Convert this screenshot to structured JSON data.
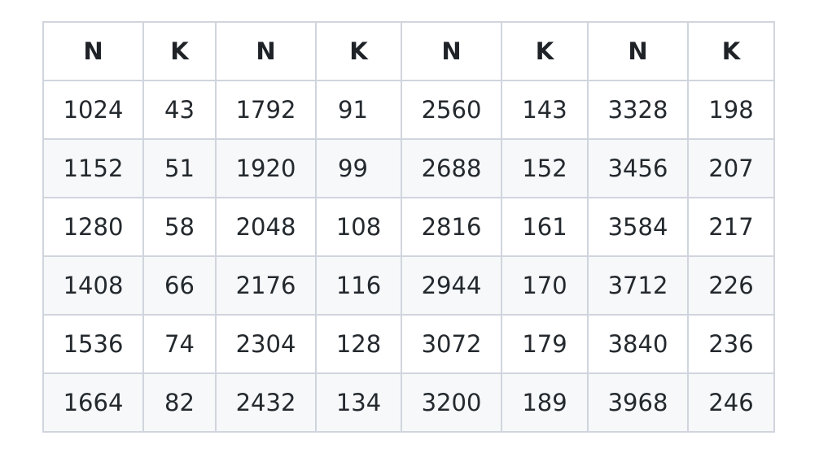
{
  "table": {
    "headers": [
      "N",
      "K",
      "N",
      "K",
      "N",
      "K",
      "N",
      "K"
    ],
    "rows": [
      [
        "1024",
        "43",
        "1792",
        "91",
        "2560",
        "143",
        "3328",
        "198"
      ],
      [
        "1152",
        "51",
        "1920",
        "99",
        "2688",
        "152",
        "3456",
        "207"
      ],
      [
        "1280",
        "58",
        "2048",
        "108",
        "2816",
        "161",
        "3584",
        "217"
      ],
      [
        "1408",
        "66",
        "2176",
        "116",
        "2944",
        "170",
        "3712",
        "226"
      ],
      [
        "1536",
        "74",
        "2304",
        "128",
        "3072",
        "179",
        "3840",
        "236"
      ],
      [
        "1664",
        "82",
        "2432",
        "134",
        "3200",
        "189",
        "3968",
        "246"
      ]
    ]
  },
  "colors": {
    "border": "#d0d5dd",
    "stripe": "#f6f8fa",
    "text": "#24292e"
  }
}
